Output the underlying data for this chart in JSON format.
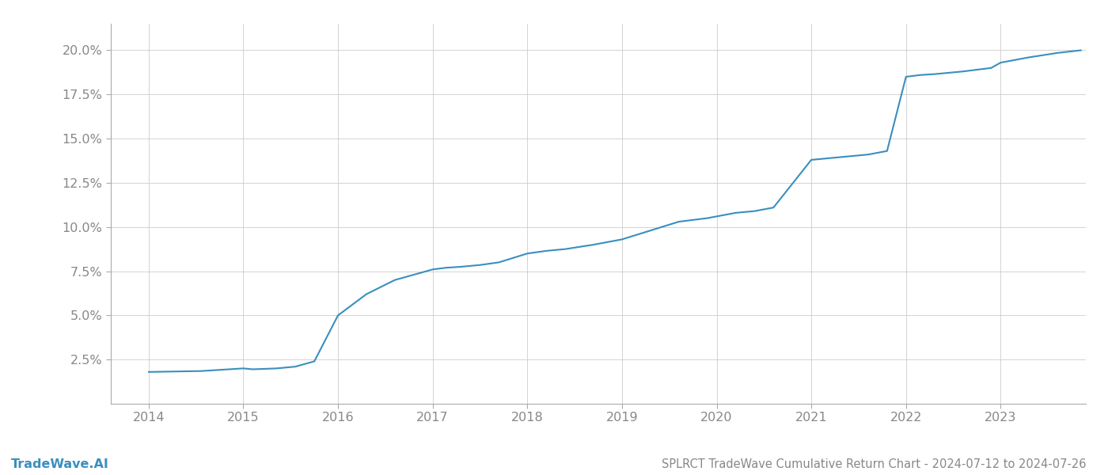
{
  "title": "SPLRCT TradeWave Cumulative Return Chart - 2024-07-12 to 2024-07-26",
  "watermark": "TradeWave.AI",
  "line_color": "#3a8fbf",
  "background_color": "#ffffff",
  "grid_color": "#cccccc",
  "x_values": [
    2014.0,
    2014.55,
    2015.0,
    2015.1,
    2015.2,
    2015.35,
    2015.55,
    2015.75,
    2016.0,
    2016.3,
    2016.6,
    2017.0,
    2017.15,
    2017.3,
    2017.5,
    2017.7,
    2018.0,
    2018.2,
    2018.4,
    2018.7,
    2019.0,
    2019.3,
    2019.6,
    2019.9,
    2020.0,
    2020.1,
    2020.2,
    2020.4,
    2020.6,
    2021.0,
    2021.2,
    2021.4,
    2021.6,
    2021.8,
    2022.0,
    2022.15,
    2022.3,
    2022.6,
    2022.9,
    2023.0,
    2023.3,
    2023.6,
    2023.85
  ],
  "y_values": [
    1.8,
    1.85,
    2.0,
    1.95,
    1.97,
    2.0,
    2.1,
    2.4,
    5.0,
    6.2,
    7.0,
    7.6,
    7.7,
    7.75,
    7.85,
    8.0,
    8.5,
    8.65,
    8.75,
    9.0,
    9.3,
    9.8,
    10.3,
    10.5,
    10.6,
    10.7,
    10.8,
    10.9,
    11.1,
    13.8,
    13.9,
    14.0,
    14.1,
    14.3,
    18.5,
    18.6,
    18.65,
    18.8,
    19.0,
    19.3,
    19.6,
    19.85,
    20.0
  ],
  "xlim": [
    2013.6,
    2023.9
  ],
  "ylim": [
    0.0,
    21.5
  ],
  "yticks": [
    2.5,
    5.0,
    7.5,
    10.0,
    12.5,
    15.0,
    17.5,
    20.0
  ],
  "ytick_labels": [
    "2.5%",
    "5.0%",
    "7.5%",
    "10.0%",
    "12.5%",
    "15.0%",
    "17.5%",
    "20.0%"
  ],
  "xticks": [
    2014,
    2015,
    2016,
    2017,
    2018,
    2019,
    2020,
    2021,
    2022,
    2023
  ],
  "line_width": 1.5,
  "title_fontsize": 10.5,
  "tick_fontsize": 11.5,
  "watermark_fontsize": 11.5,
  "tick_color": "#888888",
  "spine_color": "#aaaaaa",
  "watermark_color": "#3a8fbf"
}
